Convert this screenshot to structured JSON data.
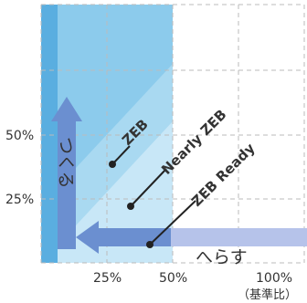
{
  "axes": {
    "y_ticks": [
      "50%",
      "25%"
    ],
    "x_ticks": [
      "25%",
      "50%",
      "100%"
    ],
    "x_unit_note": "（基準比）"
  },
  "regions": {
    "zeb": "ZEB",
    "nearly_zeb": "Nearly ZEB",
    "zeb_ready": "ZEB Ready"
  },
  "arrows": {
    "vertical": "つくる",
    "horizontal": "へらす"
  },
  "colors": {
    "region_outer": "#8ccbec",
    "region_middle": "#a9d9f1",
    "region_inner": "#c8e7f7",
    "strip": "#5aaee0",
    "arrow": "#6b8fd0",
    "arrow_light": "#b6c3ea",
    "grid": "#bbbbbb",
    "text": "#333333"
  }
}
